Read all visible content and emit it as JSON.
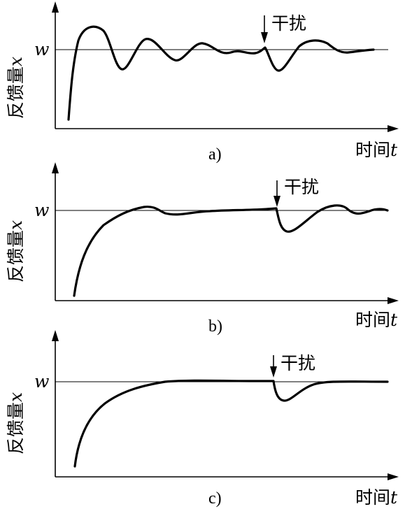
{
  "panels": [
    {
      "ylabel_text": "反馈量",
      "ylabel_var": "x",
      "ref_label": "w",
      "disturbance_label": "干扰",
      "xlabel_text": "时间",
      "xlabel_var": "t",
      "caption": "a)"
    },
    {
      "ylabel_text": "反馈量",
      "ylabel_var": "x",
      "ref_label": "w",
      "disturbance_label": "干扰",
      "xlabel_text": "时间",
      "xlabel_var": "t",
      "caption": "b)"
    },
    {
      "ylabel_text": "反馈量",
      "ylabel_var": "x",
      "ref_label": "w",
      "disturbance_label": "干扰",
      "xlabel_text": "时间",
      "xlabel_var": "t",
      "caption": "c)"
    }
  ]
}
